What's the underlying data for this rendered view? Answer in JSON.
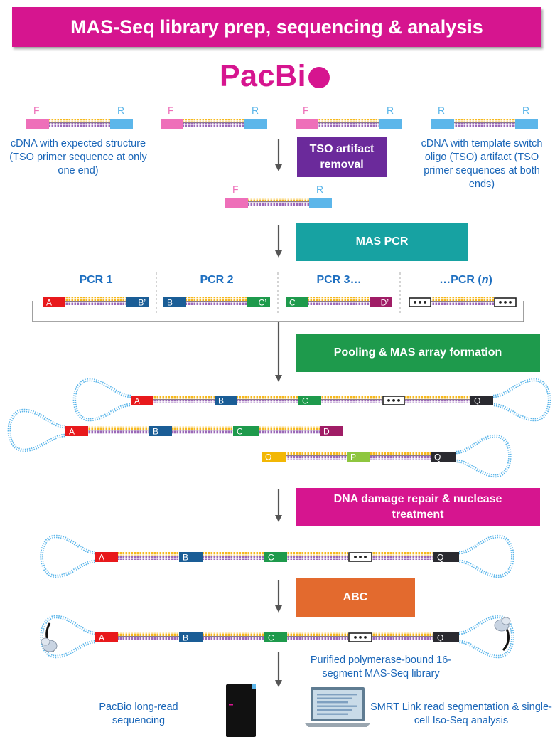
{
  "title": "MAS-Seq library prep, sequencing & analysis",
  "logo": {
    "text": "PacBi",
    "dot_color": "#d6158f"
  },
  "colors": {
    "magenta": "#d6158f",
    "purple": "#6b2a9b",
    "teal": "#17a2a2",
    "green": "#1e9a4c",
    "orange": "#e36a2e",
    "label_blue": "#1a66b8",
    "primer_pink": "#ee6fb9",
    "primer_blue": "#5cb6ea"
  },
  "cdna": {
    "f": "F",
    "r": "R",
    "expected_label": "cDNA with expected structure (TSO primer sequence at only one end)",
    "artifact_label": "cDNA with template switch oligo (TSO) artifact (TSO primer sequences at both ends)"
  },
  "steps": {
    "tso": "TSO artifact removal",
    "mas_pcr": "MAS PCR",
    "pooling": "Pooling & MAS array formation",
    "repair": "DNA damage repair & nuclease treatment",
    "abc": "ABC"
  },
  "pcr_labels": [
    "PCR 1",
    "PCR 2",
    "PCR 3…",
    "…PCR ("
  ],
  "pcr_n": "n",
  "pcr_close": ")",
  "segments": {
    "a": "A",
    "b": "B",
    "c": "C",
    "d": "D",
    "b_prime": "B’",
    "c_prime": "C’",
    "d_prime": "D’",
    "o": "O",
    "p": "P",
    "q": "Q",
    "dots": "•••"
  },
  "purified_label": "Purified polymerase-bound 16-segment MAS-Seq library",
  "sequencing_label": "PacBio long-read sequencing",
  "analysis_label": "SMRT Link read segmentation & single-cell Iso-Seq analysis"
}
